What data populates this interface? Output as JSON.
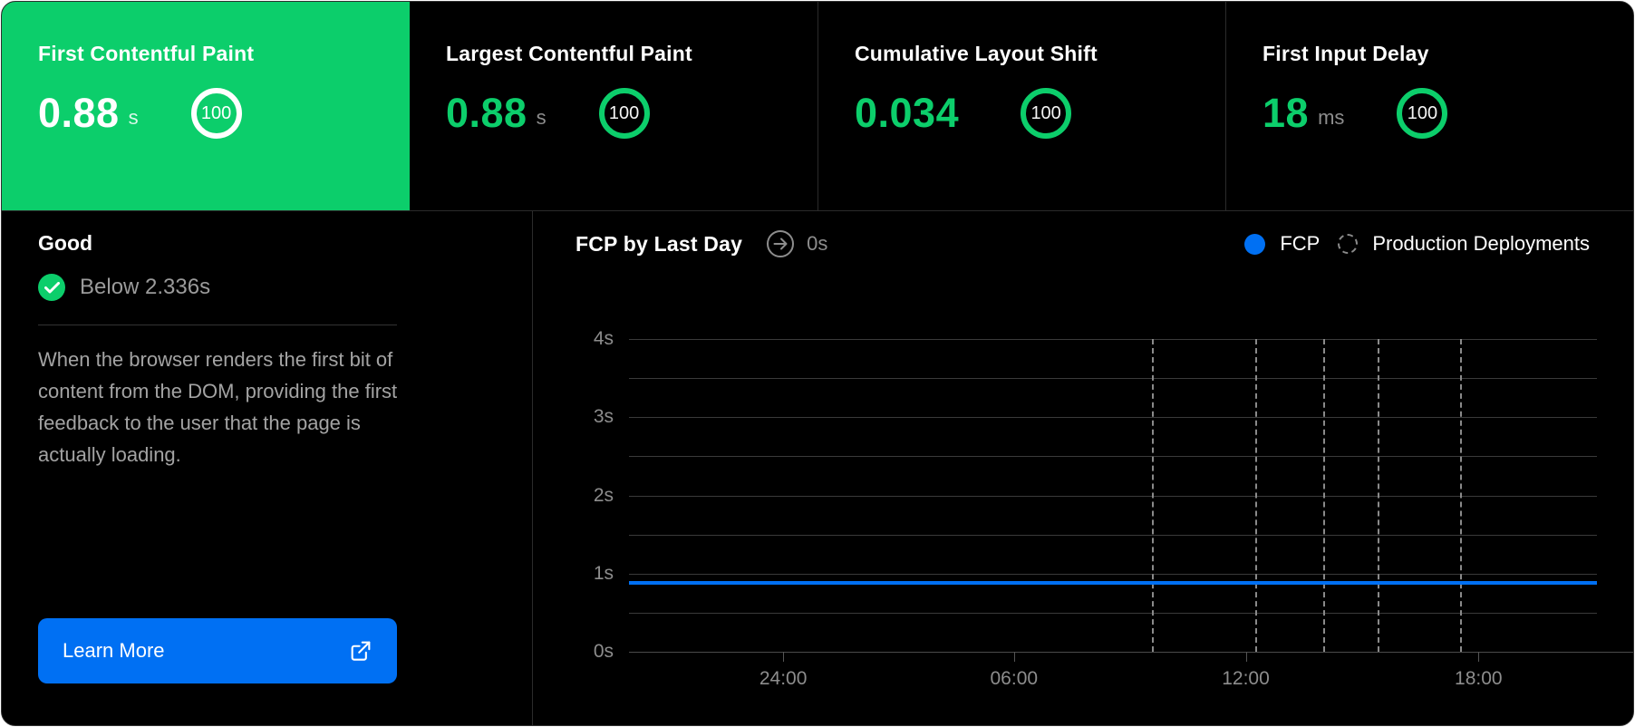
{
  "colors": {
    "green": "#0cce6b",
    "blue": "#0070f3"
  },
  "metric_cards": [
    {
      "label": "First Contentful Paint",
      "value": "0.88",
      "unit": "s",
      "score": "100",
      "selected": true
    },
    {
      "label": "Largest Contentful Paint",
      "value": "0.88",
      "unit": "s",
      "score": "100",
      "selected": false
    },
    {
      "label": "Cumulative Layout Shift",
      "value": "0.034",
      "unit": "",
      "score": "100",
      "selected": false
    },
    {
      "label": "First Input Delay",
      "value": "18",
      "unit": "ms",
      "score": "100",
      "selected": false
    }
  ],
  "detail_panel": {
    "status_heading": "Good",
    "threshold_text": "Below 2.336s",
    "description": "When the browser renders the first bit of content from the DOM, providing the first feedback to the user that the page is actually loading.",
    "learn_more_label": "Learn More"
  },
  "chart_header": {
    "title": "FCP by Last Day",
    "hover_value": "0s",
    "legend": [
      {
        "label": "FCP",
        "marker": "solid-blue-dot"
      },
      {
        "label": "Production Deployments",
        "marker": "dashed-circle"
      }
    ]
  },
  "chart_data": {
    "type": "line",
    "title": "FCP by Last Day",
    "ylabel": "seconds",
    "ylim": [
      0,
      4
    ],
    "y_tick_labels": [
      "0s",
      "1s",
      "2s",
      "3s",
      "4s"
    ],
    "gridline_interval_seconds": 0.5,
    "x_tick_labels": [
      "24:00",
      "06:00",
      "12:00",
      "18:00"
    ],
    "x_tick_positions_pct": [
      15.9,
      39.7,
      63.6,
      87.6
    ],
    "series": [
      {
        "name": "FCP",
        "shape": "flat-line",
        "value_seconds": 0.88,
        "color": "#0070f3"
      }
    ],
    "production_deployments_positions_pct": [
      53.9,
      64.6,
      71.6,
      77.2,
      85.7
    ],
    "legend_position": "top-right",
    "grid": true
  }
}
